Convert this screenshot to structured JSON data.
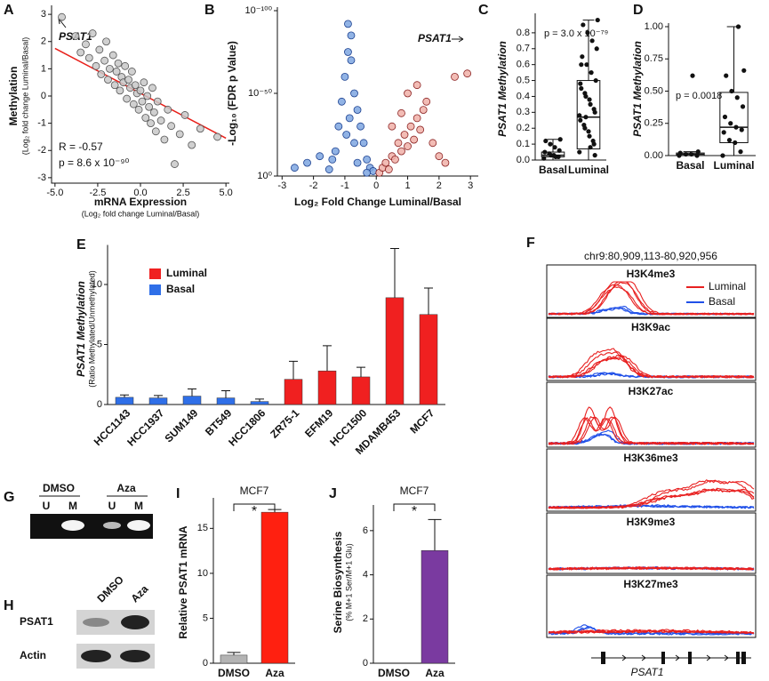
{
  "chart_data": [
    {
      "type": "scatter",
      "panel": "A",
      "y_label": "Methylation",
      "y_sublabel": "(Log₂ fold change Luminal/Basal)",
      "x_label": "mRNA Expression",
      "x_sublabel": "(Log₂ fold change Luminal/Basal)",
      "highlight": "PSAT1",
      "stat_r": "R = -0.57",
      "stat_p": "p = 8.6 x 10⁻⁹⁰",
      "xlim": [
        -5.2,
        5.2
      ],
      "ylim": [
        -3.2,
        3.2
      ],
      "xticks": [
        {
          "value": -5,
          "label": "-5.0"
        },
        {
          "value": -2.5,
          "label": "-2.5"
        },
        {
          "value": 0,
          "label": "0.0"
        },
        {
          "value": 2.5,
          "label": "2.5"
        },
        {
          "value": 5,
          "label": "5.0"
        }
      ],
      "yticks": [
        -3,
        -2,
        -1,
        0,
        1,
        2,
        3
      ],
      "series": [
        {
          "color": "#c8c8c8",
          "edge": "#555555",
          "x": [
            -4.6,
            -3.8,
            -3.5,
            -3.2,
            -3.0,
            -2.8,
            -2.6,
            -2.4,
            -2.3,
            -2.1,
            -2.0,
            -1.9,
            -1.8,
            -1.6,
            -1.5,
            -1.4,
            -1.3,
            -1.2,
            -1.1,
            -1.0,
            -0.9,
            -0.8,
            -0.7,
            -0.6,
            -0.5,
            -0.4,
            -0.3,
            -0.2,
            -0.1,
            0.0,
            0.1,
            0.2,
            0.3,
            0.4,
            0.5,
            0.6,
            0.7,
            0.8,
            0.9,
            1.0,
            1.2,
            1.4,
            1.6,
            1.8,
            2.0,
            2.3,
            2.6,
            3.0,
            3.5,
            4.5
          ],
          "values": [
            2.9,
            2.2,
            1.6,
            1.9,
            1.4,
            2.3,
            1.1,
            1.7,
            0.8,
            1.3,
            2.0,
            0.6,
            1.0,
            1.5,
            0.4,
            0.9,
            1.2,
            0.2,
            0.7,
            0.5,
            1.1,
            -0.1,
            0.6,
            0.3,
            0.9,
            -0.3,
            0.4,
            0.1,
            -0.5,
            0.2,
            -0.2,
            0.5,
            -0.8,
            0.0,
            -0.4,
            -1.0,
            0.3,
            -0.6,
            -1.3,
            -0.2,
            -0.9,
            -1.6,
            -0.5,
            -1.1,
            -2.5,
            -1.4,
            -0.7,
            -1.8,
            -1.2,
            -1.5
          ]
        }
      ],
      "fit": {
        "color": "#e8201a",
        "x": [
          -5,
          5
        ],
        "values": [
          1.75,
          -1.55
        ]
      }
    },
    {
      "type": "scatter",
      "panel": "B",
      "y_label": "-Log₁₀ (FDR p Value)",
      "x_label": "Log₂ Fold Change Luminal/Basal",
      "highlight": "PSAT1",
      "xlim": [
        -3.15,
        3.25
      ],
      "ylim": [
        0,
        100
      ],
      "xticks": [
        -3,
        -2,
        -1,
        0,
        1,
        2,
        3
      ],
      "yticks": [
        {
          "value": 0,
          "label": "10⁰"
        },
        {
          "value": 50,
          "label": "10⁻⁵⁰"
        },
        {
          "value": 100,
          "label": "10⁻¹⁰⁰"
        }
      ],
      "series": [
        {
          "color": "#7ea6e0",
          "edge": "#1a3f8f",
          "x": [
            -2.6,
            -2.2,
            -1.8,
            -1.5,
            -1.2,
            -1.1,
            -1.0,
            -0.9,
            -0.9,
            -0.8,
            -0.8,
            -0.7,
            -0.6,
            -0.5,
            -0.4,
            -0.3,
            -0.2,
            -0.1,
            -1.3,
            -0.95,
            -0.85,
            -0.6,
            -1.4,
            -0.7,
            -0.3
          ],
          "values": [
            5,
            8,
            12,
            4,
            30,
            45,
            60,
            75,
            92,
            70,
            85,
            50,
            40,
            30,
            20,
            10,
            5,
            3,
            15,
            25,
            35,
            8,
            10,
            20,
            2
          ]
        },
        {
          "color": "#f0b0a8",
          "edge": "#8a2020",
          "x": [
            0.1,
            0.2,
            0.3,
            0.4,
            0.5,
            0.6,
            0.7,
            0.8,
            0.9,
            1.0,
            1.1,
            1.2,
            1.3,
            1.4,
            1.5,
            1.6,
            1.8,
            2.0,
            2.2,
            0.5,
            0.8,
            1.0,
            1.3,
            2.5,
            2.9
          ],
          "values": [
            2,
            5,
            8,
            4,
            12,
            10,
            20,
            15,
            25,
            18,
            30,
            22,
            35,
            28,
            40,
            45,
            20,
            12,
            8,
            30,
            38,
            50,
            55,
            60,
            62
          ]
        }
      ]
    },
    {
      "type": "box",
      "panel": "C",
      "y_label": "PSAT1 Methylation",
      "stat_p": "p = 3.0 x 10⁻⁷⁹",
      "ylim": [
        0,
        0.9
      ],
      "yticks": [
        {
          "value": 0,
          "label": "0.0"
        },
        0.1,
        0.2,
        0.3,
        0.4,
        0.5,
        0.6,
        0.7,
        0.8
      ],
      "categories": [
        "Basal",
        "Luminal"
      ],
      "boxes": [
        {
          "min": 0.0,
          "q1": 0.02,
          "median": 0.03,
          "q3": 0.05,
          "max": 0.13,
          "points": [
            0.01,
            0.02,
            0.03,
            0.04,
            0.05,
            0.06,
            0.08,
            0.1,
            0.12,
            0.13,
            0.02,
            0.03
          ]
        },
        {
          "min": 0.0,
          "q1": 0.07,
          "median": 0.27,
          "q3": 0.5,
          "max": 0.88,
          "points": [
            0.05,
            0.1,
            0.15,
            0.2,
            0.25,
            0.3,
            0.35,
            0.4,
            0.45,
            0.5,
            0.55,
            0.6,
            0.65,
            0.7,
            0.75,
            0.8,
            0.85,
            0.88,
            0.12,
            0.18,
            0.22,
            0.28,
            0.32,
            0.38,
            0.42,
            0.48,
            0.03,
            0.08,
            0.27,
            0.6
          ]
        }
      ]
    },
    {
      "type": "box",
      "panel": "D",
      "y_label": "PSAT1 Methylation",
      "stat_p": "p = 0.0018",
      "ylim": [
        0,
        1
      ],
      "yticks": [
        {
          "value": 0,
          "label": "0.00"
        },
        {
          "value": 0.25,
          "label": "0.25"
        },
        {
          "value": 0.5,
          "label": "0.50"
        },
        {
          "value": 0.75,
          "label": "0.75"
        },
        {
          "value": 1,
          "label": "1.00"
        }
      ],
      "categories": [
        "Basal",
        "Luminal"
      ],
      "boxes": [
        {
          "min": 0.0,
          "q1": 0.0,
          "median": 0.01,
          "q3": 0.02,
          "max": 0.03,
          "points": [
            0,
            0,
            0.01,
            0.01,
            0.02,
            0.03,
            0.62
          ]
        },
        {
          "min": 0.0,
          "q1": 0.1,
          "median": 0.22,
          "q3": 0.49,
          "max": 1.0,
          "points": [
            0,
            0.03,
            0.1,
            0.12,
            0.18,
            0.2,
            0.22,
            0.25,
            0.3,
            0.38,
            0.45,
            0.5,
            0.62,
            0.66,
            1.0
          ]
        }
      ]
    },
    {
      "type": "bar",
      "panel": "E",
      "y_label": "PSAT1 Methylation",
      "y_sublabel": "(Ratio Methylated/Unmethylated)",
      "ylim": [
        0,
        13
      ],
      "yticks": [
        0,
        5,
        10
      ],
      "categories": [
        "HCC1143",
        "HCC1937",
        "SUM149",
        "BT549",
        "HCC1806",
        "ZR75-1",
        "EFM19",
        "HCC1500",
        "MDAMB453",
        "MCF7"
      ],
      "series": [
        {
          "name": "Luminal",
          "color": "#f02020",
          "values": [
            null,
            null,
            null,
            null,
            null,
            2.1,
            2.8,
            2.3,
            8.9,
            7.5
          ],
          "errors": [
            null,
            null,
            null,
            null,
            null,
            1.5,
            2.1,
            0.8,
            4.1,
            2.2
          ]
        },
        {
          "name": "Basal",
          "color": "#2f6fe8",
          "values": [
            0.6,
            0.55,
            0.7,
            0.55,
            0.25,
            null,
            null,
            null,
            null,
            null
          ],
          "errors": [
            0.2,
            0.2,
            0.6,
            0.6,
            0.2,
            null,
            null,
            null,
            null,
            null
          ]
        }
      ]
    },
    {
      "type": "bar",
      "panel": "I",
      "title": "MCF7",
      "significance": "*",
      "y_label": "Relative PSAT1 mRNA",
      "ylim": [
        0,
        18
      ],
      "yticks": [
        0,
        5,
        10,
        15
      ],
      "categories": [
        "DMSO",
        "Aza"
      ],
      "values": [
        0.9,
        16.8
      ],
      "errors": [
        0.3,
        0.3
      ],
      "colors": [
        "#b4b4b4",
        "#ff2010"
      ]
    },
    {
      "type": "bar",
      "panel": "J",
      "title": "MCF7",
      "significance": "*",
      "y_label": "Serine Biosynthesis",
      "y_sublabel": "(% M+1 Ser/M+1 Glu)",
      "ylim": [
        0,
        7
      ],
      "yticks": [
        0,
        2,
        4,
        6
      ],
      "categories": [
        "DMSO",
        "Aza"
      ],
      "values": [
        0,
        5.1
      ],
      "errors": [
        null,
        1.4
      ],
      "colors": [
        "#b4b4b4",
        "#7a3aa0"
      ]
    }
  ],
  "panel_F": {
    "panel": "F",
    "region": "chr9:80,909,113-80,920,956",
    "tracks": [
      "H3K4me3",
      "H3K9ac",
      "H3K27ac",
      "H3K36me3",
      "H3K9me3",
      "H3K27me3"
    ],
    "legend": [
      {
        "name": "Luminal",
        "color": "#e82020"
      },
      {
        "name": "Basal",
        "color": "#2050e8"
      }
    ],
    "gene": "PSAT1"
  },
  "panel_G": {
    "panel": "G",
    "groups": [
      "DMSO",
      "Aza"
    ],
    "lanes": [
      "U",
      "M",
      "U",
      "M"
    ]
  },
  "panel_H": {
    "panel": "H",
    "columns": [
      "DMSO",
      "Aza"
    ],
    "rows": [
      "PSAT1",
      "Actin"
    ]
  }
}
